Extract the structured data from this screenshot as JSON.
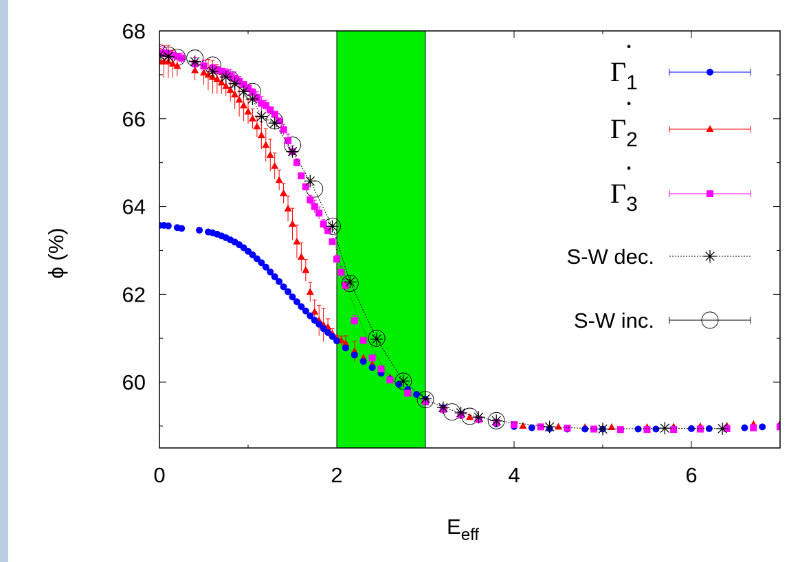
{
  "chart_data": {
    "type": "scatter",
    "xlabel": "E",
    "xlabel_sub": "eff",
    "ylabel": "ϕ (%)",
    "xlim": [
      0,
      7
    ],
    "ylim": [
      58.5,
      68
    ],
    "xticks": [
      "0",
      "2",
      "4",
      "6"
    ],
    "xtick_values": [
      0,
      2,
      4,
      6
    ],
    "yticks": [
      "60",
      "62",
      "64",
      "66",
      "68"
    ],
    "ytick_values": [
      60,
      62,
      64,
      66,
      68
    ],
    "grid": false,
    "legend_position": "top-right",
    "highlight_band": {
      "x_from": 2,
      "x_to": 3,
      "color": "#00ee00"
    },
    "series": [
      {
        "legend_symbol": "Γ",
        "legend_subscript": "1",
        "legend_dot": "·",
        "color": "#0000ff",
        "marker": "circle",
        "x": [
          0.0,
          0.05,
          0.1,
          0.2,
          0.25,
          0.45,
          0.55,
          0.6,
          0.65,
          0.7,
          0.75,
          0.8,
          0.85,
          0.9,
          0.95,
          1.0,
          1.05,
          1.1,
          1.15,
          1.2,
          1.25,
          1.3,
          1.35,
          1.4,
          1.45,
          1.5,
          1.55,
          1.6,
          1.65,
          1.7,
          1.75,
          1.8,
          1.85,
          1.9,
          1.95,
          2.0,
          2.1,
          2.2,
          2.3,
          2.4,
          2.5,
          2.6,
          2.7,
          2.8,
          2.9,
          3.0,
          3.2,
          3.4,
          3.6,
          3.8,
          4.0,
          4.2,
          4.4,
          4.6,
          4.8,
          5.0,
          5.2,
          5.4,
          5.6,
          5.8,
          6.0,
          6.2,
          6.4,
          6.6,
          6.8,
          7.0
        ],
        "y": [
          63.57,
          63.57,
          63.56,
          63.52,
          63.5,
          63.46,
          63.42,
          63.4,
          63.37,
          63.33,
          63.29,
          63.24,
          63.19,
          63.13,
          63.06,
          62.98,
          62.9,
          62.81,
          62.72,
          62.62,
          62.51,
          62.4,
          62.29,
          62.17,
          62.06,
          61.94,
          61.83,
          61.72,
          61.62,
          61.51,
          61.41,
          61.32,
          61.22,
          61.13,
          61.04,
          60.94,
          60.78,
          60.62,
          60.47,
          60.33,
          60.2,
          60.07,
          59.95,
          59.83,
          59.72,
          59.61,
          59.42,
          59.27,
          59.14,
          59.05,
          58.99,
          58.96,
          58.94,
          58.93,
          58.93,
          58.93,
          58.92,
          58.93,
          58.93,
          58.93,
          58.94,
          58.94,
          58.95,
          58.96,
          58.98,
          59.0
        ]
      },
      {
        "legend_symbol": "Γ",
        "legend_subscript": "2",
        "legend_dot": "·",
        "color": "#ff0000",
        "marker": "triangle",
        "x": [
          0.0,
          0.05,
          0.1,
          0.15,
          0.2,
          0.4,
          0.5,
          0.55,
          0.6,
          0.65,
          0.7,
          0.75,
          0.8,
          0.85,
          0.9,
          0.95,
          1.0,
          1.05,
          1.1,
          1.15,
          1.2,
          1.25,
          1.3,
          1.35,
          1.4,
          1.45,
          1.5,
          1.55,
          1.6,
          1.65,
          1.7,
          1.75,
          1.8,
          1.85,
          1.9,
          1.95,
          2.0,
          2.05,
          2.1,
          2.2,
          2.3,
          2.4,
          2.5,
          2.6,
          2.8,
          3.0,
          3.2,
          3.5,
          3.8,
          4.1,
          4.5,
          4.8,
          5.1,
          5.5,
          5.8,
          6.1,
          6.4,
          6.7,
          7.0
        ],
        "y": [
          67.3,
          67.3,
          67.3,
          67.25,
          67.2,
          67.1,
          67.05,
          67.0,
          66.95,
          66.9,
          66.82,
          66.74,
          66.65,
          66.55,
          66.43,
          66.3,
          66.16,
          66.0,
          65.82,
          65.62,
          65.4,
          65.17,
          64.92,
          64.6,
          64.3,
          63.95,
          63.6,
          63.2,
          62.85,
          62.55,
          62.05,
          61.6,
          61.4,
          61.3,
          61.25,
          61.1,
          61.0,
          60.95,
          60.88,
          60.7,
          60.55,
          60.4,
          60.25,
          60.1,
          59.82,
          59.6,
          59.42,
          59.2,
          59.07,
          59.0,
          58.98,
          58.97,
          58.97,
          58.97,
          58.98,
          58.99,
          59.0,
          59.04,
          59.05
        ]
      },
      {
        "legend_symbol": "Γ",
        "legend_subscript": "3",
        "legend_dot": "·",
        "color": "#ff00ff",
        "marker": "square",
        "x": [
          0.0,
          0.05,
          0.1,
          0.15,
          0.2,
          0.25,
          0.4,
          0.5,
          0.6,
          0.65,
          0.7,
          0.75,
          0.8,
          0.85,
          0.9,
          0.95,
          1.0,
          1.05,
          1.1,
          1.15,
          1.2,
          1.25,
          1.3,
          1.35,
          1.4,
          1.45,
          1.5,
          1.55,
          1.6,
          1.65,
          1.7,
          1.75,
          1.8,
          1.85,
          1.9,
          1.95,
          2.0,
          2.05,
          2.1,
          2.2,
          2.3,
          2.4,
          2.5,
          2.6,
          2.8,
          3.0,
          3.2,
          3.4,
          3.6,
          3.8,
          4.0,
          4.3,
          4.6,
          4.9,
          5.2,
          5.5,
          5.8,
          6.1,
          6.4,
          6.7,
          7.0
        ],
        "y": [
          67.5,
          67.5,
          67.48,
          67.45,
          67.42,
          67.38,
          67.25,
          67.2,
          67.15,
          67.12,
          67.08,
          67.04,
          66.98,
          66.92,
          66.85,
          66.78,
          66.7,
          66.6,
          66.48,
          66.35,
          66.3,
          66.2,
          66.1,
          65.95,
          65.75,
          65.5,
          65.25,
          65.0,
          64.7,
          64.45,
          64.15,
          64.0,
          63.85,
          63.6,
          63.45,
          63.2,
          62.8,
          62.5,
          62.2,
          61.4,
          60.95,
          60.55,
          60.3,
          60.05,
          59.75,
          59.55,
          59.38,
          59.25,
          59.15,
          59.08,
          59.03,
          58.98,
          58.95,
          58.93,
          58.92,
          58.92,
          58.92,
          58.93,
          58.94,
          58.96,
          58.98
        ]
      },
      {
        "legend_label": "S-W dec.",
        "color": "#000000",
        "marker": "star",
        "x": [
          0.0,
          0.1,
          0.4,
          0.6,
          0.75,
          0.85,
          0.95,
          1.05,
          1.15,
          1.3,
          1.5,
          1.7,
          1.95,
          2.15,
          2.45,
          2.75,
          3.0,
          3.2,
          3.4,
          3.6,
          3.8,
          4.4,
          5.0,
          5.7,
          6.35
        ],
        "y": [
          67.45,
          67.42,
          67.3,
          67.08,
          66.95,
          66.8,
          66.62,
          66.45,
          66.05,
          65.9,
          65.25,
          64.58,
          63.55,
          62.28,
          60.98,
          60.02,
          59.62,
          59.42,
          59.3,
          59.2,
          59.12,
          58.98,
          58.93,
          58.95,
          58.94
        ]
      },
      {
        "legend_label": "S-W inc.",
        "color": "#000000",
        "marker": "open-circle",
        "x": [
          0.0,
          0.1,
          0.2,
          0.4,
          0.6,
          0.8,
          1.05,
          1.3,
          1.5,
          1.75,
          1.95,
          2.15,
          2.45,
          2.75,
          3.0,
          3.3,
          3.5,
          3.8
        ],
        "y": [
          67.5,
          67.45,
          67.4,
          67.38,
          67.22,
          66.9,
          66.62,
          65.95,
          65.4,
          64.4,
          63.55,
          62.25,
          61.0,
          60.02,
          59.6,
          59.32,
          59.22,
          59.12
        ]
      }
    ]
  }
}
